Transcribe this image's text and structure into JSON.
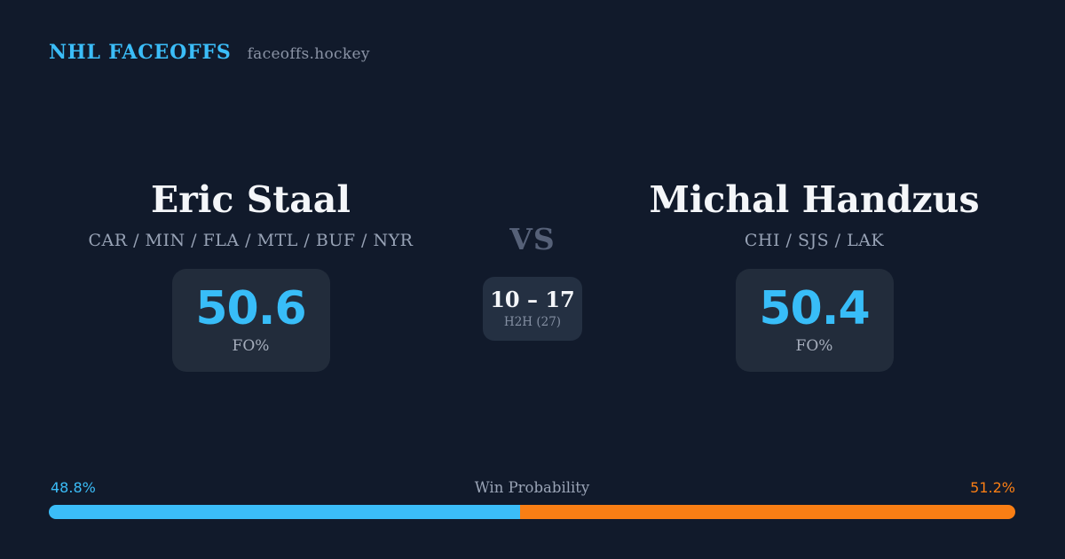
{
  "header": {
    "brand": "NHL FACEOFFS",
    "site": "faceoffs.hockey"
  },
  "matchup": {
    "left": {
      "name": "Eric Staal",
      "teams": "CAR / MIN / FLA / MTL / BUF / NYR",
      "stat_value": "50.6",
      "stat_label": "FO%"
    },
    "vs_label": "VS",
    "h2h": {
      "score": "10 – 17",
      "label": "H2H (27)"
    },
    "right": {
      "name": "Michal Handzus",
      "teams": "CHI / SJS / LAK",
      "stat_value": "50.4",
      "stat_label": "FO%"
    }
  },
  "win_probability": {
    "label": "Win Probability",
    "left_pct": "48.8%",
    "right_pct": "51.2%",
    "left_value": 48.8,
    "right_value": 51.2,
    "left_color": "#3bbdf8",
    "right_color": "#f97e14"
  },
  "colors": {
    "background": "#111a2b",
    "card": "#222c3b",
    "accent_blue": "#38bdf8",
    "accent_orange": "#f97e14",
    "text_primary": "#f4f6f9",
    "text_muted": "#98a3b6"
  }
}
